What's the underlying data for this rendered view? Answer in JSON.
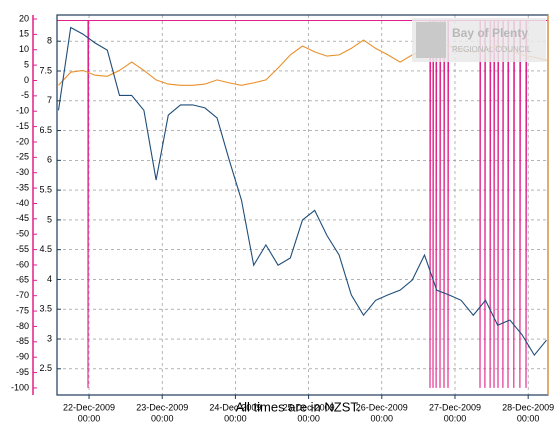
{
  "chart_data": {
    "type": "line",
    "logo": {
      "line1": "Bay of Plenty",
      "line2": "REGIONAL COUNCIL"
    },
    "caption": "All times are in NZST.",
    "xlim": [
      "2009-12-21T13:30",
      "2009-12-28T06:30"
    ],
    "xticks": [
      {
        "value": "2009-12-22T00:00",
        "label": [
          "22-Dec-2009",
          "00:00"
        ]
      },
      {
        "value": "2009-12-23T00:00",
        "label": [
          "23-Dec-2009",
          "00:00"
        ]
      },
      {
        "value": "2009-12-24T00:00",
        "label": [
          "24-Dec-2009",
          "00:00"
        ]
      },
      {
        "value": "2009-12-25T00:00",
        "label": [
          "25-Dec-2009",
          "00:00"
        ]
      },
      {
        "value": "2009-12-26T00:00",
        "label": [
          "26-Dec-2009",
          "00:00"
        ]
      },
      {
        "value": "2009-12-27T00:00",
        "label": [
          "27-Dec-2009",
          "00:00"
        ]
      },
      {
        "value": "2009-12-28T00:00",
        "label": [
          "28-Dec-2009",
          "00:00"
        ]
      }
    ],
    "ylim": [
      -102.3,
      21.3
    ],
    "yticks": [
      20,
      15,
      10,
      5,
      0,
      -5,
      -10,
      -15,
      -20,
      -25,
      -30,
      -35,
      -40,
      -45,
      -50,
      -55,
      -60,
      -65,
      -70,
      -75,
      -80,
      -85,
      -90,
      -95,
      -100
    ],
    "y2lim": [
      2.06,
      8.44
    ],
    "y2ticks": [
      8,
      7.5,
      7,
      6.5,
      6,
      5.5,
      5,
      4.5,
      4,
      3.5,
      3,
      2.5
    ],
    "grid": true,
    "x": [
      "2009-12-21T14:00",
      "2009-12-21T18:00",
      "2009-12-21T22:00",
      "2009-12-22T02:00",
      "2009-12-22T06:00",
      "2009-12-22T10:00",
      "2009-12-22T14:00",
      "2009-12-22T18:00",
      "2009-12-22T22:00",
      "2009-12-23T02:00",
      "2009-12-23T06:00",
      "2009-12-23T10:00",
      "2009-12-23T14:00",
      "2009-12-23T18:00",
      "2009-12-23T22:00",
      "2009-12-24T02:00",
      "2009-12-24T06:00",
      "2009-12-24T10:00",
      "2009-12-24T14:00",
      "2009-12-24T18:00",
      "2009-12-24T22:00",
      "2009-12-25T02:00",
      "2009-12-25T06:00",
      "2009-12-25T10:00",
      "2009-12-25T14:00",
      "2009-12-25T18:00",
      "2009-12-25T22:00",
      "2009-12-26T02:00",
      "2009-12-26T06:00",
      "2009-12-26T10:00",
      "2009-12-26T14:00",
      "2009-12-26T18:00",
      "2009-12-26T22:00",
      "2009-12-27T02:00",
      "2009-12-27T06:00",
      "2009-12-27T10:00",
      "2009-12-27T14:00",
      "2009-12-27T18:00",
      "2009-12-27T22:00",
      "2009-12-28T02:00",
      "2009-12-28T06:00"
    ],
    "series": [
      {
        "color": "#1f4e79",
        "axis": "y2",
        "values": [
          6.84,
          8.23,
          8.12,
          7.97,
          7.85,
          7.09,
          7.09,
          6.84,
          5.67,
          6.76,
          6.93,
          6.93,
          6.88,
          6.71,
          6.0,
          5.33,
          4.24,
          4.58,
          4.24,
          4.36,
          5.0,
          5.16,
          4.74,
          4.41,
          3.74,
          3.4,
          3.65,
          3.74,
          3.82,
          3.99,
          4.41,
          3.82,
          3.74,
          3.65,
          3.4,
          3.65,
          3.23,
          3.32,
          3.07,
          2.73,
          2.98
        ]
      },
      {
        "color": "#e8902a",
        "axis": "y2",
        "values": [
          7.26,
          7.48,
          7.51,
          7.43,
          7.41,
          7.51,
          7.65,
          7.51,
          7.35,
          7.28,
          7.26,
          7.26,
          7.28,
          7.35,
          7.3,
          7.26,
          7.3,
          7.35,
          7.55,
          7.77,
          7.92,
          7.82,
          7.75,
          7.77,
          7.88,
          8.02,
          7.88,
          7.77,
          7.65,
          7.77,
          7.85,
          7.93,
          7.92,
          7.85,
          7.82,
          7.85,
          7.93,
          7.85,
          7.77,
          7.73,
          7.68
        ]
      },
      {
        "color": "#e0208a",
        "axis": "y",
        "x": [
          "2009-12-21T13:30",
          "2009-12-21T23:40",
          "2009-12-21T23:40",
          "2009-12-21T23:50",
          "2009-12-26T15:48",
          "2009-12-26T15:48",
          "2009-12-26T15:58",
          "2009-12-26T16:48",
          "2009-12-26T16:48",
          "2009-12-26T16:58",
          "2009-12-26T17:48",
          "2009-12-26T17:48",
          "2009-12-26T17:58",
          "2009-12-26T19:06",
          "2009-12-26T19:06",
          "2009-12-26T19:16",
          "2009-12-26T20:24",
          "2009-12-26T20:24",
          "2009-12-26T20:34",
          "2009-12-26T21:42",
          "2009-12-26T21:42",
          "2009-12-26T21:52",
          "2009-12-27T08:12",
          "2009-12-27T08:12",
          "2009-12-27T08:22",
          "2009-12-27T09:48",
          "2009-12-27T09:48",
          "2009-12-27T09:58",
          "2009-12-27T11:30",
          "2009-12-27T11:30",
          "2009-12-27T11:40",
          "2009-12-27T12:48",
          "2009-12-27T12:48",
          "2009-12-27T12:58",
          "2009-12-27T14:06",
          "2009-12-27T14:06",
          "2009-12-27T14:16",
          "2009-12-27T15:42",
          "2009-12-27T15:42",
          "2009-12-27T15:52",
          "2009-12-27T17:24",
          "2009-12-27T17:24",
          "2009-12-27T17:34",
          "2009-12-27T19:18",
          "2009-12-27T19:18",
          "2009-12-27T19:28",
          "2009-12-27T21:18",
          "2009-12-27T21:18",
          "2009-12-27T21:28",
          "2009-12-27T23:18",
          "2009-12-27T23:18",
          "2009-12-27T23:28",
          "2009-12-28T06:30"
        ],
        "values": [
          19.5,
          19.5,
          -100,
          19.5,
          19.5,
          -100,
          19.5,
          19.5,
          -100,
          19.5,
          19.5,
          -100,
          19.5,
          19.5,
          -100,
          19.5,
          19.5,
          -100,
          19.5,
          19.5,
          -100,
          19.5,
          19.5,
          -100,
          19.5,
          19.5,
          -100,
          19.5,
          19.5,
          -100,
          19.5,
          19.5,
          -100,
          19.5,
          19.5,
          -100,
          19.5,
          19.5,
          -100,
          19.5,
          19.5,
          -100,
          19.5,
          19.5,
          -100,
          19.5,
          19.5,
          -100,
          19.5,
          19.5,
          -100,
          19.5,
          19.5
        ]
      }
    ]
  }
}
